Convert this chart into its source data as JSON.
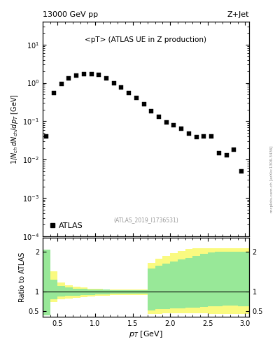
{
  "title_left": "13000 GeV pp",
  "title_right": "Z+Jet",
  "annotation": "<pT> (ATLAS UE in Z production)",
  "dataset_label": "(ATLAS_2019_I1736531)",
  "legend_label": "ATLAS",
  "ylabel_main": "$1/N_{ch}\\,dN_{ch}/dp_T$ [GeV]",
  "ylabel_ratio": "Ratio to ATLAS",
  "xlabel": "$p_T$ [GeV]",
  "watermark": "mcplots.cern.ch [arXiv:1306.3436]",
  "main_xlim": [
    0.3,
    3.05
  ],
  "main_ylim_log": [
    0.0001,
    40
  ],
  "ratio_ylim": [
    0.35,
    2.35
  ],
  "ratio_yticks": [
    0.5,
    1.0,
    2.0
  ],
  "data_x": [
    0.35,
    0.45,
    0.55,
    0.65,
    0.75,
    0.85,
    0.95,
    1.05,
    1.15,
    1.25,
    1.35,
    1.45,
    1.55,
    1.65,
    1.75,
    1.85,
    1.95,
    2.05,
    2.15,
    2.25,
    2.35,
    2.45,
    2.55,
    2.65,
    2.75,
    2.85,
    2.95
  ],
  "data_y": [
    0.04,
    0.55,
    0.95,
    1.3,
    1.55,
    1.7,
    1.7,
    1.6,
    1.3,
    1.0,
    0.75,
    0.55,
    0.4,
    0.28,
    0.185,
    0.13,
    0.095,
    0.08,
    0.065,
    0.048,
    0.038,
    0.04,
    0.04,
    0.015,
    0.013,
    0.018,
    0.005
  ],
  "band_edges": [
    0.3,
    0.4,
    0.5,
    0.6,
    0.7,
    0.8,
    0.9,
    1.0,
    1.1,
    1.2,
    1.3,
    1.4,
    1.5,
    1.6,
    1.7,
    1.8,
    1.9,
    2.0,
    2.1,
    2.2,
    2.3,
    2.4,
    2.5,
    2.6,
    2.7,
    2.8,
    2.9,
    3.05
  ],
  "green_lo": [
    0.38,
    0.8,
    0.86,
    0.88,
    0.89,
    0.9,
    0.91,
    0.92,
    0.92,
    0.93,
    0.93,
    0.93,
    0.93,
    0.93,
    0.52,
    0.54,
    0.55,
    0.56,
    0.57,
    0.58,
    0.59,
    0.6,
    0.61,
    0.62,
    0.63,
    0.63,
    0.62
  ],
  "green_hi": [
    2.05,
    1.3,
    1.14,
    1.09,
    1.07,
    1.06,
    1.05,
    1.04,
    1.04,
    1.03,
    1.03,
    1.03,
    1.03,
    1.03,
    1.58,
    1.65,
    1.7,
    1.75,
    1.8,
    1.85,
    1.9,
    1.95,
    1.98,
    2.0,
    2.0,
    2.0,
    2.0
  ],
  "yellow_lo": [
    0.38,
    0.73,
    0.8,
    0.82,
    0.83,
    0.85,
    0.87,
    0.88,
    0.89,
    0.9,
    0.9,
    0.91,
    0.91,
    0.91,
    0.43,
    0.43,
    0.44,
    0.44,
    0.44,
    0.44,
    0.44,
    0.44,
    0.43,
    0.43,
    0.43,
    0.43,
    0.43
  ],
  "yellow_hi": [
    2.05,
    1.5,
    1.22,
    1.15,
    1.12,
    1.09,
    1.07,
    1.06,
    1.05,
    1.05,
    1.04,
    1.04,
    1.04,
    1.04,
    1.72,
    1.82,
    1.9,
    1.97,
    2.03,
    2.07,
    2.1,
    2.1,
    2.1,
    2.1,
    2.1,
    2.1,
    2.1
  ],
  "marker_color": "black",
  "marker_size": 4,
  "green_color": "#98E898",
  "yellow_color": "#FAFA80",
  "background_color": "white"
}
